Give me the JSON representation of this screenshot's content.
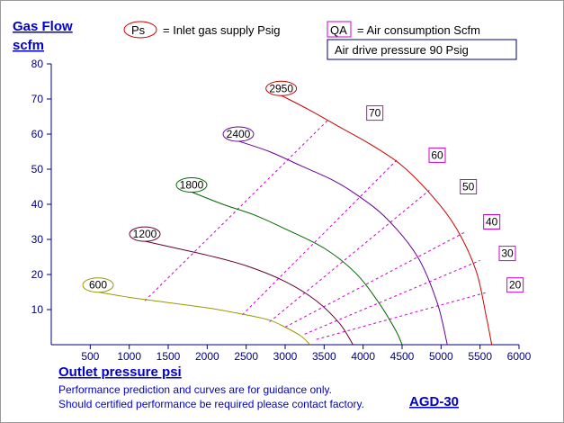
{
  "header": {
    "y_title_line1": "Gas Flow",
    "y_title_line2": "scfm",
    "ps_symbol": "Ps",
    "ps_legend": "= Inlet gas supply  Psig",
    "qa_symbol": "QA",
    "qa_legend": "= Air consumption  Scfm",
    "air_drive": "Air drive pressure  90 Psig"
  },
  "footer": {
    "x_title": "Outlet pressure   psi",
    "note_line1": "Performance prediction and curves are for guidance only.",
    "note_line2": "Should certified performance be required please contact factory.",
    "model": "AGD-30"
  },
  "colors": {
    "ps600": "#999900",
    "ps1200": "#660033",
    "ps1800": "#006600",
    "ps2400": "#660099",
    "ps2950": "#cc0000",
    "qa": "#cc00cc",
    "axis": "#000080"
  },
  "chart_data": {
    "type": "line",
    "title": "",
    "xlabel": "Outlet pressure   psi",
    "ylabel": "Gas Flow scfm",
    "xlim": [
      0,
      6000
    ],
    "ylim": [
      0,
      80
    ],
    "x_ticks": [
      "500",
      "1000",
      "1500",
      "2000",
      "2500",
      "3000",
      "3500",
      "4000",
      "4500",
      "5000",
      "5500",
      "6000"
    ],
    "y_ticks": [
      "10",
      "20",
      "30",
      "40",
      "50",
      "60",
      "70",
      "80"
    ],
    "grid": false,
    "series": [
      {
        "name": "600",
        "color_key": "ps600",
        "label_at": [
          600,
          17
        ],
        "points": [
          [
            600,
            15
          ],
          [
            1000,
            13.5
          ],
          [
            1500,
            12
          ],
          [
            2000,
            10.5
          ],
          [
            2500,
            8.5
          ],
          [
            2800,
            7
          ],
          [
            3000,
            5
          ],
          [
            3200,
            2.5
          ],
          [
            3320,
            0
          ]
        ]
      },
      {
        "name": "1200",
        "color_key": "ps1200",
        "label_at": [
          1200,
          31.5
        ],
        "points": [
          [
            1200,
            29.5
          ],
          [
            1600,
            27.5
          ],
          [
            2000,
            25.5
          ],
          [
            2500,
            22.5
          ],
          [
            3000,
            18
          ],
          [
            3400,
            12.5
          ],
          [
            3700,
            6
          ],
          [
            3870,
            0
          ]
        ]
      },
      {
        "name": "1800",
        "color_key": "ps1800",
        "label_at": [
          1800,
          45.5
        ],
        "points": [
          [
            1800,
            43.5
          ],
          [
            2200,
            40
          ],
          [
            2600,
            37
          ],
          [
            3000,
            33
          ],
          [
            3500,
            27.5
          ],
          [
            3900,
            20.5
          ],
          [
            4200,
            12
          ],
          [
            4420,
            4
          ],
          [
            4500,
            0
          ]
        ]
      },
      {
        "name": "2400",
        "color_key": "ps2400",
        "label_at": [
          2400,
          60
        ],
        "points": [
          [
            2400,
            58
          ],
          [
            2800,
            55
          ],
          [
            3200,
            51
          ],
          [
            3600,
            47
          ],
          [
            3900,
            43
          ],
          [
            4300,
            36
          ],
          [
            4700,
            25
          ],
          [
            4950,
            12
          ],
          [
            5080,
            0
          ]
        ]
      },
      {
        "name": "2950",
        "color_key": "ps2950",
        "label_at": [
          2950,
          73
        ],
        "points": [
          [
            2950,
            71
          ],
          [
            3300,
            67
          ],
          [
            3700,
            62
          ],
          [
            4100,
            57
          ],
          [
            4500,
            51
          ],
          [
            4900,
            42
          ],
          [
            5200,
            33
          ],
          [
            5450,
            21
          ],
          [
            5580,
            8
          ],
          [
            5650,
            0
          ]
        ]
      }
    ],
    "qa_lines": [
      {
        "name": "70",
        "from": [
          1200,
          12.5
        ],
        "to": [
          3550,
          64
        ]
      },
      {
        "name": "60",
        "from": [
          2450,
          8.5
        ],
        "to": [
          4450,
          53
        ]
      },
      {
        "name": "50",
        "from": [
          2800,
          6.5
        ],
        "to": [
          4850,
          44
        ]
      },
      {
        "name": "40",
        "from": [
          3000,
          5
        ],
        "to": [
          5300,
          32
        ]
      },
      {
        "name": "30",
        "from": [
          3250,
          3
        ],
        "to": [
          5500,
          24
        ]
      },
      {
        "name": "20",
        "from": [
          3400,
          1.5
        ],
        "to": [
          5600,
          15
        ]
      }
    ],
    "qa_label_at": {
      "70": [
        4150,
        66
      ],
      "60": [
        4950,
        54
      ],
      "50": [
        5350,
        45
      ],
      "40": [
        5650,
        35
      ],
      "30": [
        5850,
        26
      ],
      "20": [
        5950,
        17
      ]
    }
  }
}
